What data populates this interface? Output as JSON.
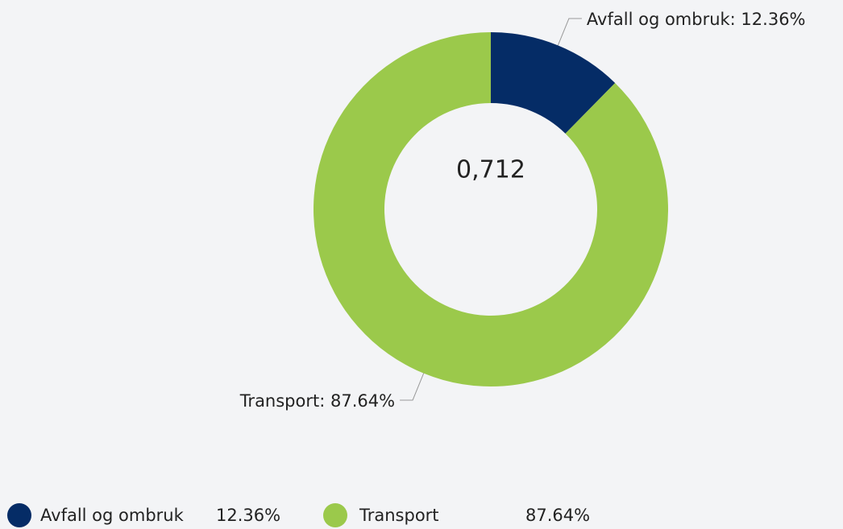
{
  "chart_data": {
    "type": "donut",
    "center_label": "0,712",
    "categories": [
      "Avfall og ombruk",
      "Transport"
    ],
    "values": [
      12.36,
      87.64
    ],
    "value_labels": [
      "12.36%",
      "87.64%"
    ],
    "slice_labels": [
      "Avfall og ombruk: 12.36%",
      "Transport: 87.64%"
    ],
    "colors": [
      "#052c66",
      "#9bc94b"
    ],
    "legend": "bottom-left"
  }
}
